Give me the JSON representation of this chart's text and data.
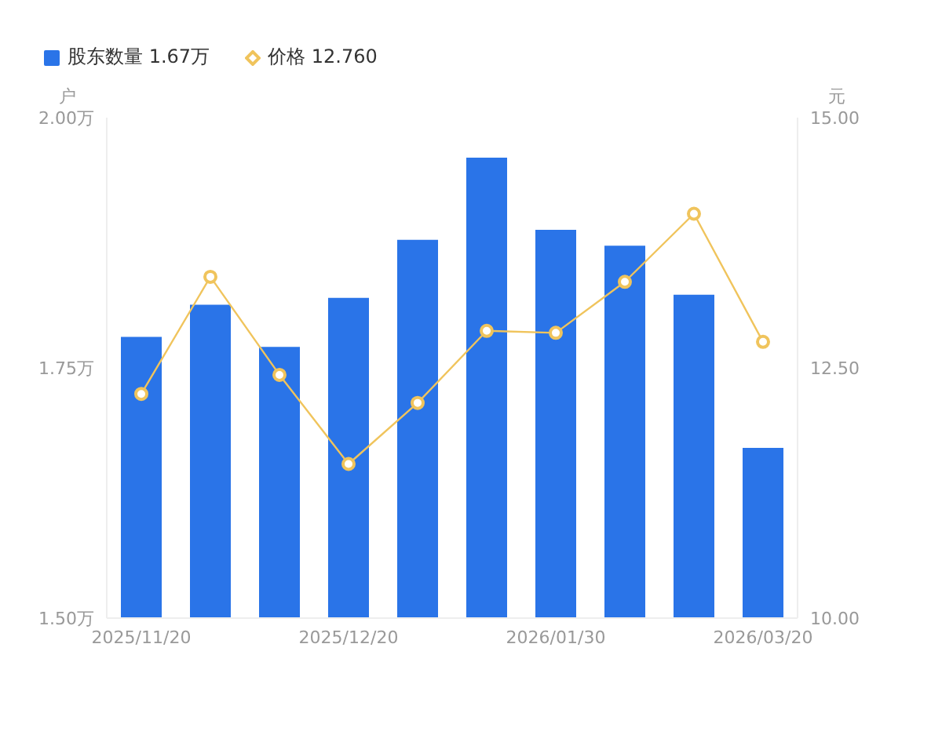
{
  "chart_data": {
    "type": "bar",
    "categories": [
      "2025/11/20",
      null,
      null,
      "2025/12/20",
      null,
      null,
      "2026/01/30",
      null,
      null,
      "2026/03/20"
    ],
    "ylabel": "户",
    "y2label": "元",
    "series": [
      {
        "name": "股东数量 1.67万",
        "color": "#2a74e8",
        "values": [
          1.781,
          1.813,
          1.771,
          1.82,
          1.878,
          1.96,
          1.888,
          1.872,
          1.823,
          1.67
        ]
      },
      {
        "name": "价格 12.760",
        "type": "line",
        "axis": "y2",
        "color": "#f0c45c",
        "values": [
          12.24,
          13.41,
          12.43,
          11.54,
          12.15,
          12.87,
          12.85,
          13.36,
          14.04,
          12.76
        ]
      }
    ],
    "ylim": [
      1.5,
      2.0
    ],
    "yticks": [
      {
        "value": 1.5,
        "label": "1.50万"
      },
      {
        "value": 1.75,
        "label": "1.75万"
      },
      {
        "value": 2.0,
        "label": "2.00万"
      }
    ],
    "y2lim": [
      10,
      15
    ],
    "y2ticks": [
      {
        "value": 10,
        "label": "10.00"
      },
      {
        "value": 12.5,
        "label": "12.50"
      },
      {
        "value": 15,
        "label": "15.00"
      }
    ],
    "legend": "top left",
    "marker": "circle",
    "grid": false
  }
}
